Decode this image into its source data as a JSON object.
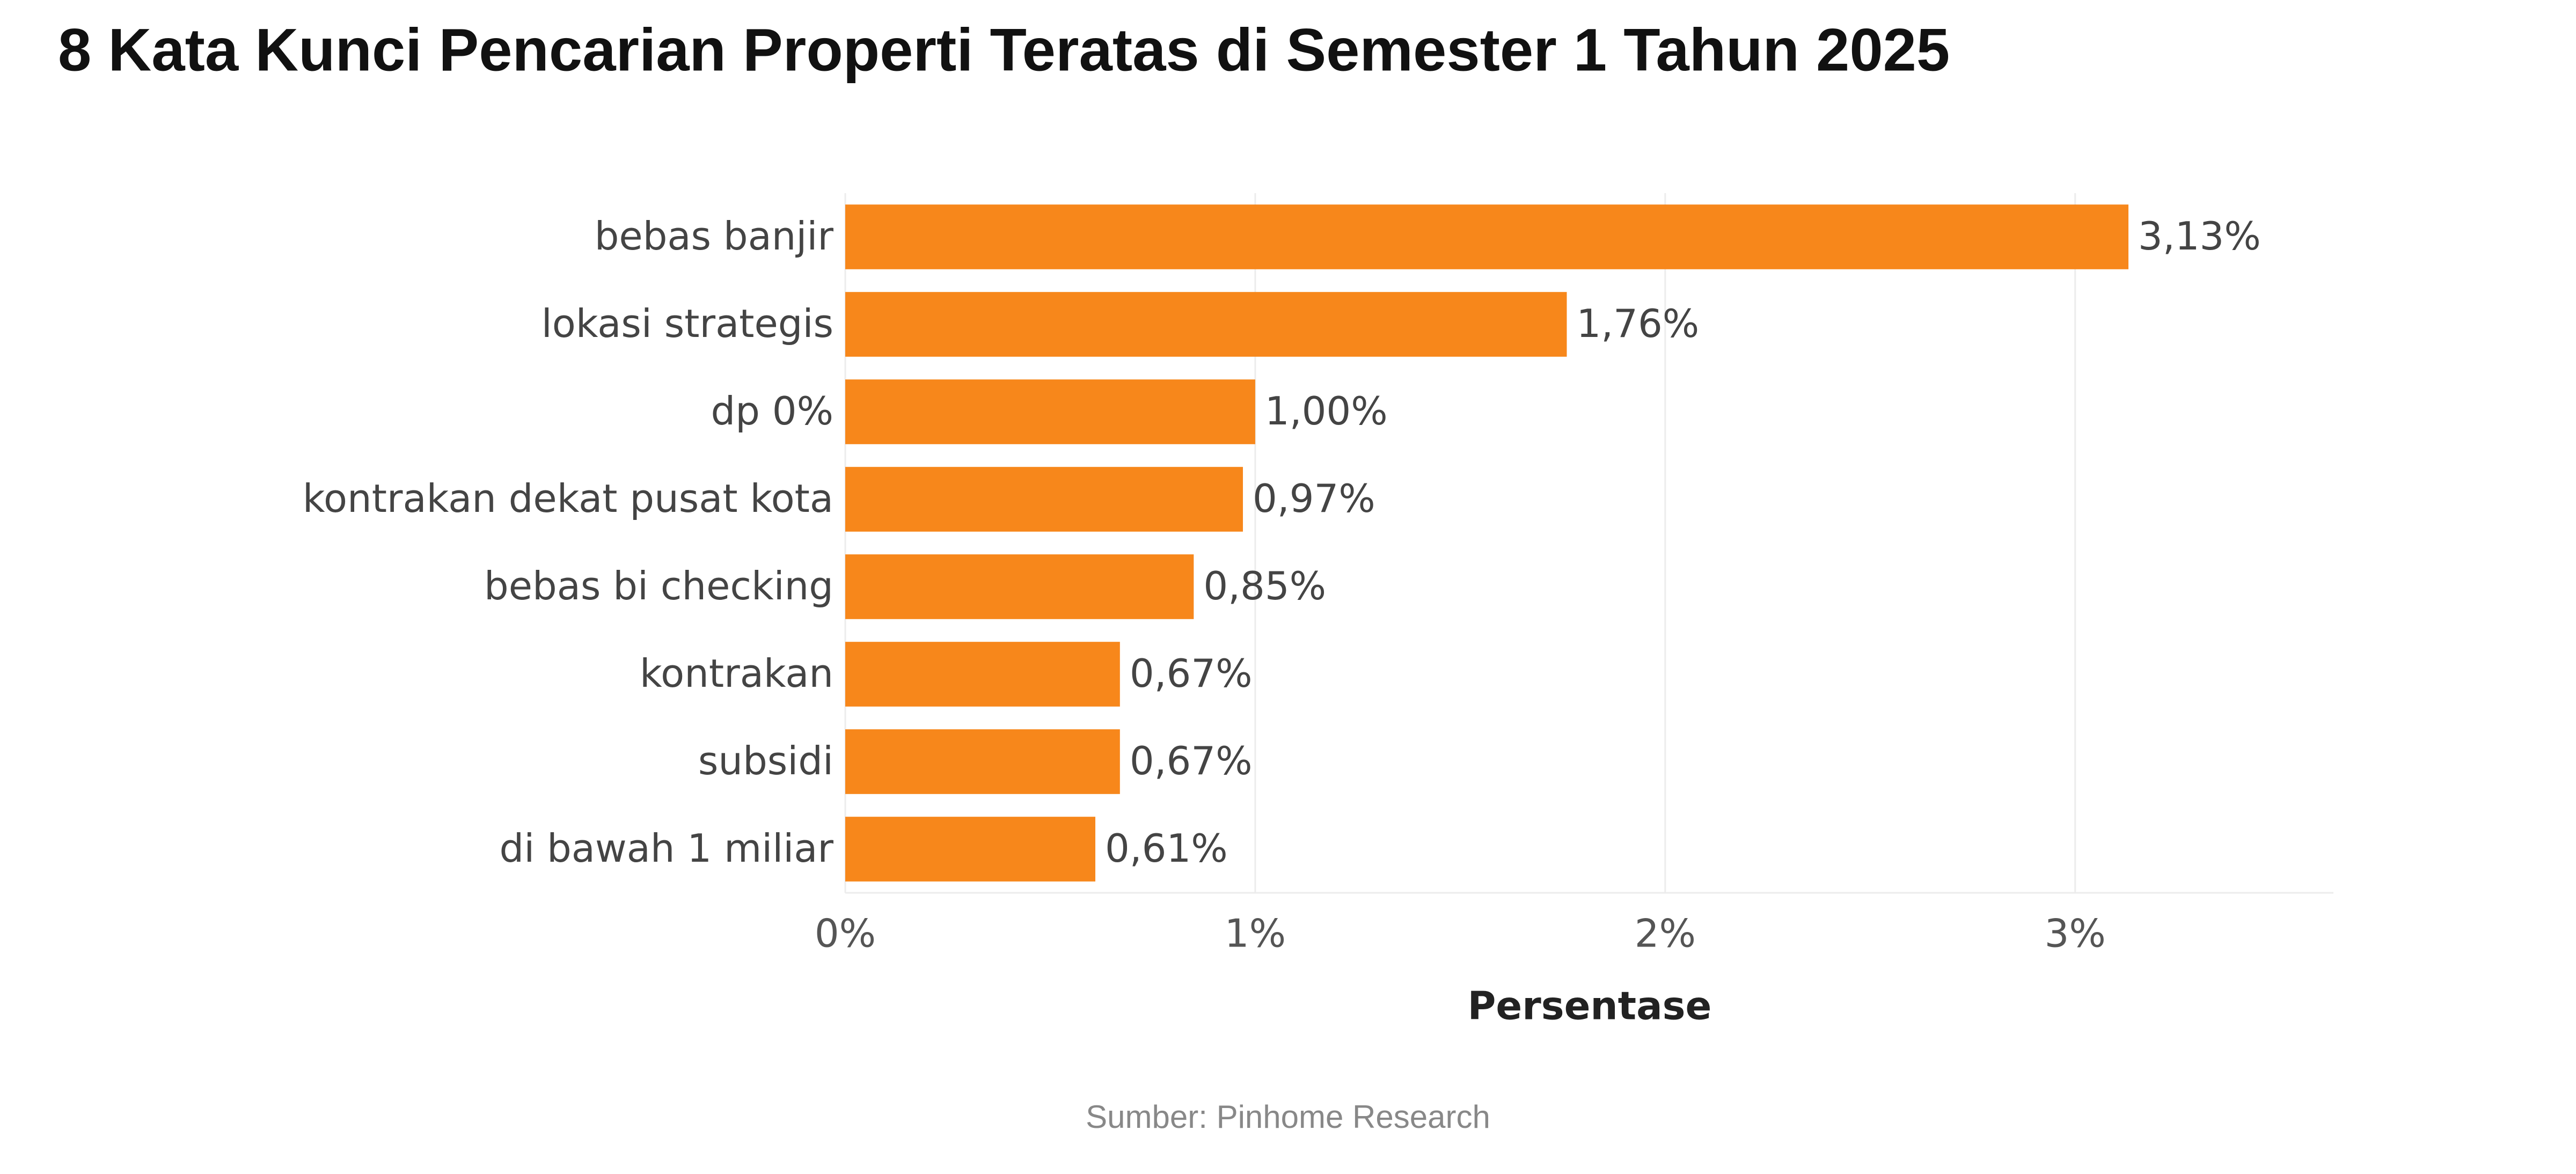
{
  "chart_data": {
    "type": "bar",
    "orientation": "horizontal",
    "title": "8 Kata Kunci Pencarian Properti Teratas di Semester 1 Tahun 2025",
    "categories": [
      "bebas banjir",
      "lokasi strategis",
      "dp 0%",
      "kontrakan dekat pusat kota",
      "bebas bi checking",
      "kontrakan",
      "subsidi",
      "di bawah 1 miliar"
    ],
    "values": [
      3.13,
      1.76,
      1.0,
      0.97,
      0.85,
      0.67,
      0.67,
      0.61
    ],
    "value_labels": [
      "3,13%",
      "1,76%",
      "1,00%",
      "0,97%",
      "0,85%",
      "0,67%",
      "0,67%",
      "0,61%"
    ],
    "color": "#f7871b",
    "xlim": [
      0,
      3.63
    ],
    "xticks": [
      {
        "value": 0,
        "label": "0%"
      },
      {
        "value": 1,
        "label": "1%"
      },
      {
        "value": 2,
        "label": "2%"
      },
      {
        "value": 3,
        "label": "3%"
      }
    ],
    "x_label": "Persentase",
    "grid": true,
    "source": "Sumber: Pinhome Research"
  }
}
